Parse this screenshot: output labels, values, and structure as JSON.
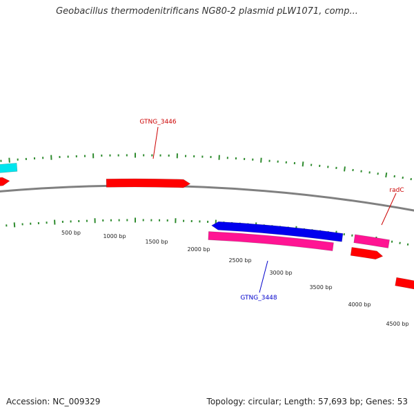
{
  "title": "Geobacillus thermodenitrificans NG80-2 plasmid pLW1071, comp...",
  "footer": {
    "accession": "Accession: NC_009329",
    "stats": "Topology: circular; Length: 57,693 bp; Genes: 53"
  },
  "map": {
    "tick_labels": [
      {
        "text": "500 bp",
        "bp": 500
      },
      {
        "text": "1000 bp",
        "bp": 1000
      },
      {
        "text": "1500 bp",
        "bp": 1500
      },
      {
        "text": "2000 bp",
        "bp": 2000
      },
      {
        "text": "2500 bp",
        "bp": 2500
      },
      {
        "text": "3000 bp",
        "bp": 3000
      },
      {
        "text": "3500 bp",
        "bp": 3500
      },
      {
        "text": "4000 bp",
        "bp": 4000
      },
      {
        "text": "4500 bp",
        "bp": 4500
      }
    ],
    "gene_labels": [
      {
        "text": "GTNG_3446",
        "color": "#cc0000"
      },
      {
        "text": "radC",
        "color": "#cc0000"
      },
      {
        "text": "GTNG_3448",
        "color": "#0000cc"
      }
    ],
    "colors": {
      "backbone": "#808080",
      "tick": "#2e8b2e",
      "gene_red": "#ff0000",
      "gene_blue": "#0000ee",
      "gene_pink": "#ff1493",
      "gene_cyan": "#00e5ee"
    }
  }
}
